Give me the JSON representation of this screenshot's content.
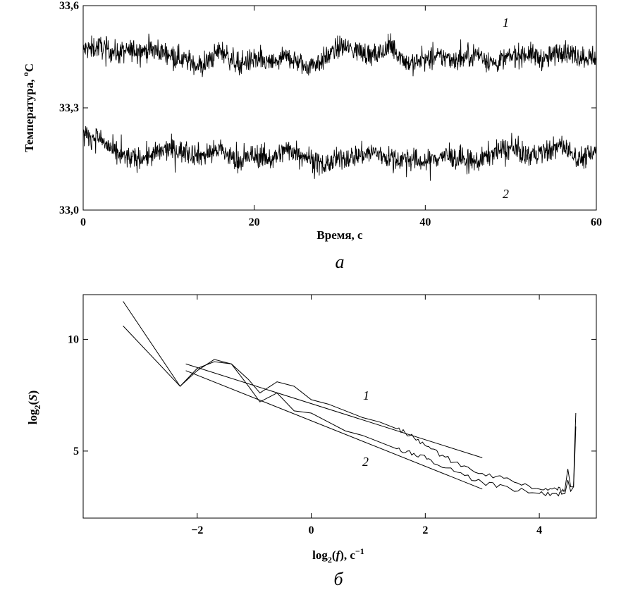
{
  "chart_data": [
    {
      "type": "line",
      "panel_label": "а",
      "xlabel": "Время, с",
      "ylabel_main": "Температура, ",
      "ylabel_sup": "o",
      "ylabel_tail": "C",
      "xlim": [
        0,
        60
      ],
      "ylim": [
        33.0,
        33.6
      ],
      "xticks": [
        0,
        20,
        40,
        60
      ],
      "xtick_labels": [
        "0",
        "20",
        "40",
        "60"
      ],
      "yticks": [
        33.0,
        33.3,
        33.6
      ],
      "ytick_labels": [
        "33,0",
        "33,3",
        "33,6"
      ],
      "grid": false,
      "series": [
        {
          "name": "1",
          "x": [
            0,
            2,
            4,
            6,
            8,
            10,
            12,
            14,
            16,
            18,
            20,
            22,
            24,
            26,
            28,
            30,
            32,
            34,
            36,
            38,
            40,
            42,
            44,
            46,
            48,
            50,
            52,
            54,
            56,
            58,
            60
          ],
          "values": [
            33.47,
            33.48,
            33.46,
            33.47,
            33.47,
            33.46,
            33.44,
            33.42,
            33.47,
            33.43,
            33.44,
            33.43,
            33.45,
            33.42,
            33.44,
            33.48,
            33.47,
            33.45,
            33.48,
            33.43,
            33.44,
            33.45,
            33.44,
            33.46,
            33.43,
            33.45,
            33.46,
            33.44,
            33.47,
            33.45,
            33.45
          ]
        },
        {
          "name": "2",
          "x": [
            0,
            2,
            4,
            6,
            8,
            10,
            12,
            14,
            16,
            18,
            20,
            22,
            24,
            26,
            28,
            30,
            32,
            34,
            36,
            38,
            40,
            42,
            44,
            46,
            48,
            50,
            52,
            54,
            56,
            58,
            60
          ],
          "values": [
            33.22,
            33.21,
            33.16,
            33.15,
            33.16,
            33.18,
            33.17,
            33.16,
            33.18,
            33.14,
            33.16,
            33.15,
            33.18,
            33.16,
            33.13,
            33.15,
            33.16,
            33.17,
            33.15,
            33.15,
            33.14,
            33.16,
            33.15,
            33.14,
            33.17,
            33.18,
            33.16,
            33.17,
            33.19,
            33.15,
            33.17
          ]
        }
      ],
      "curve_labels": [
        "1",
        "2"
      ]
    },
    {
      "type": "line",
      "panel_label": "б",
      "xlabel_parts": [
        "log",
        "2",
        "(",
        "f",
        "), c",
        "−1"
      ],
      "ylabel_parts": [
        "log",
        "2",
        "(",
        "S",
        ")"
      ],
      "xlim": [
        -4,
        5
      ],
      "ylim": [
        2.0,
        12.0
      ],
      "xticks": [
        -2,
        0,
        2,
        4
      ],
      "xtick_labels": [
        "−2",
        "0",
        "2",
        "4"
      ],
      "yticks": [
        5,
        10
      ],
      "ytick_labels": [
        "5",
        "10"
      ],
      "grid": false,
      "series": [
        {
          "name": "1",
          "x": [
            -3.3,
            -2.3,
            -2.0,
            -1.7,
            -1.4,
            -1.1,
            -0.9,
            -0.6,
            -0.3,
            0.0,
            0.3,
            0.6,
            0.9,
            1.2,
            1.5,
            1.8,
            2.1,
            2.5,
            3.0,
            3.5,
            4.0,
            4.3,
            4.45,
            4.5,
            4.55,
            4.6,
            4.62,
            4.64
          ],
          "values": [
            10.6,
            7.9,
            8.7,
            9.0,
            8.9,
            8.2,
            7.6,
            8.1,
            7.9,
            7.3,
            7.1,
            6.8,
            6.5,
            6.3,
            6.0,
            5.6,
            5.1,
            4.5,
            4.0,
            3.7,
            3.3,
            3.3,
            3.3,
            4.2,
            3.4,
            3.4,
            5.2,
            6.7
          ]
        },
        {
          "name": "2",
          "x": [
            -3.3,
            -2.3,
            -2.0,
            -1.7,
            -1.4,
            -1.1,
            -0.9,
            -0.6,
            -0.3,
            0.0,
            0.3,
            0.6,
            0.9,
            1.2,
            1.5,
            1.8,
            2.1,
            2.5,
            3.0,
            3.5,
            4.0,
            4.3,
            4.45,
            4.5,
            4.55,
            4.6,
            4.62,
            4.64
          ],
          "values": [
            11.7,
            7.9,
            8.6,
            9.1,
            8.9,
            7.9,
            7.2,
            7.6,
            6.8,
            6.7,
            6.3,
            5.9,
            5.7,
            5.4,
            5.1,
            4.9,
            4.6,
            4.1,
            3.6,
            3.3,
            3.1,
            3.1,
            3.1,
            3.7,
            3.2,
            3.4,
            4.6,
            6.1
          ]
        }
      ],
      "fit_lines": [
        {
          "x": [
            -2.2,
            3.0
          ],
          "values": [
            8.9,
            4.7
          ]
        },
        {
          "x": [
            -2.2,
            3.0
          ],
          "values": [
            8.6,
            3.3
          ]
        }
      ],
      "curve_labels": [
        "1",
        "2"
      ]
    }
  ]
}
